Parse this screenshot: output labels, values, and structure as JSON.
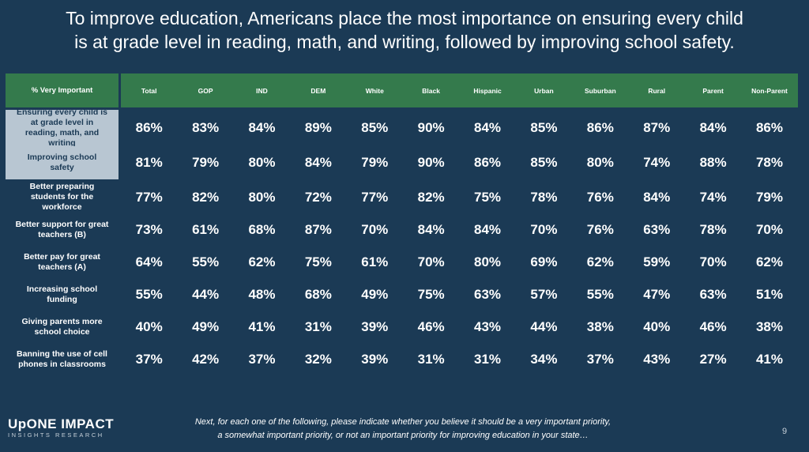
{
  "title_lines": [
    "To improve education, Americans place the most importance on ensuring every child",
    "is at grade level in reading, math, and writing, followed by improving school safety."
  ],
  "colors": {
    "background": "#1b3a55",
    "header": "#347a4c",
    "highlight": "#b8c6d2"
  },
  "table": {
    "row_header": "% Very Important",
    "columns": [
      "Total",
      "GOP",
      "IND",
      "DEM",
      "White",
      "Black",
      "Hispanic",
      "Urban",
      "Suburban",
      "Rural",
      "Parent",
      "Non-Parent"
    ],
    "rows": [
      {
        "label": "Ensuring every child is at grade level in reading, math, and writing",
        "highlighted": true,
        "values": [
          "86%",
          "83%",
          "84%",
          "89%",
          "85%",
          "90%",
          "84%",
          "85%",
          "86%",
          "87%",
          "84%",
          "86%"
        ]
      },
      {
        "label": "Improving school safety",
        "highlighted": true,
        "values": [
          "81%",
          "79%",
          "80%",
          "84%",
          "79%",
          "90%",
          "86%",
          "85%",
          "80%",
          "74%",
          "88%",
          "78%"
        ]
      },
      {
        "label": "Better preparing students for the workforce",
        "highlighted": false,
        "values": [
          "77%",
          "82%",
          "80%",
          "72%",
          "77%",
          "82%",
          "75%",
          "78%",
          "76%",
          "84%",
          "74%",
          "79%"
        ]
      },
      {
        "label": "Better support for great teachers (B)",
        "highlighted": false,
        "values": [
          "73%",
          "61%",
          "68%",
          "87%",
          "70%",
          "84%",
          "84%",
          "70%",
          "76%",
          "63%",
          "78%",
          "70%"
        ]
      },
      {
        "label": "Better pay for great teachers (A)",
        "highlighted": false,
        "values": [
          "64%",
          "55%",
          "62%",
          "75%",
          "61%",
          "70%",
          "80%",
          "69%",
          "62%",
          "59%",
          "70%",
          "62%"
        ]
      },
      {
        "label": "Increasing school funding",
        "highlighted": false,
        "values": [
          "55%",
          "44%",
          "48%",
          "68%",
          "49%",
          "75%",
          "63%",
          "57%",
          "55%",
          "47%",
          "63%",
          "51%"
        ]
      },
      {
        "label": "Giving parents more school choice",
        "highlighted": false,
        "values": [
          "40%",
          "49%",
          "41%",
          "31%",
          "39%",
          "46%",
          "43%",
          "44%",
          "38%",
          "40%",
          "46%",
          "38%"
        ]
      },
      {
        "label": "Banning the use of cell phones in classrooms",
        "highlighted": false,
        "values": [
          "37%",
          "42%",
          "37%",
          "32%",
          "39%",
          "31%",
          "31%",
          "34%",
          "37%",
          "43%",
          "27%",
          "41%"
        ]
      }
    ]
  },
  "logo": {
    "line1": "UpONE IMPACT",
    "line2": "INSIGHTS RESEARCH"
  },
  "footnote_lines": [
    "Next, for each one of the following, please indicate whether you believe it should be a very important priority,",
    "a somewhat important priority, or not an important priority for improving education in your state…"
  ],
  "page_number": "9"
}
